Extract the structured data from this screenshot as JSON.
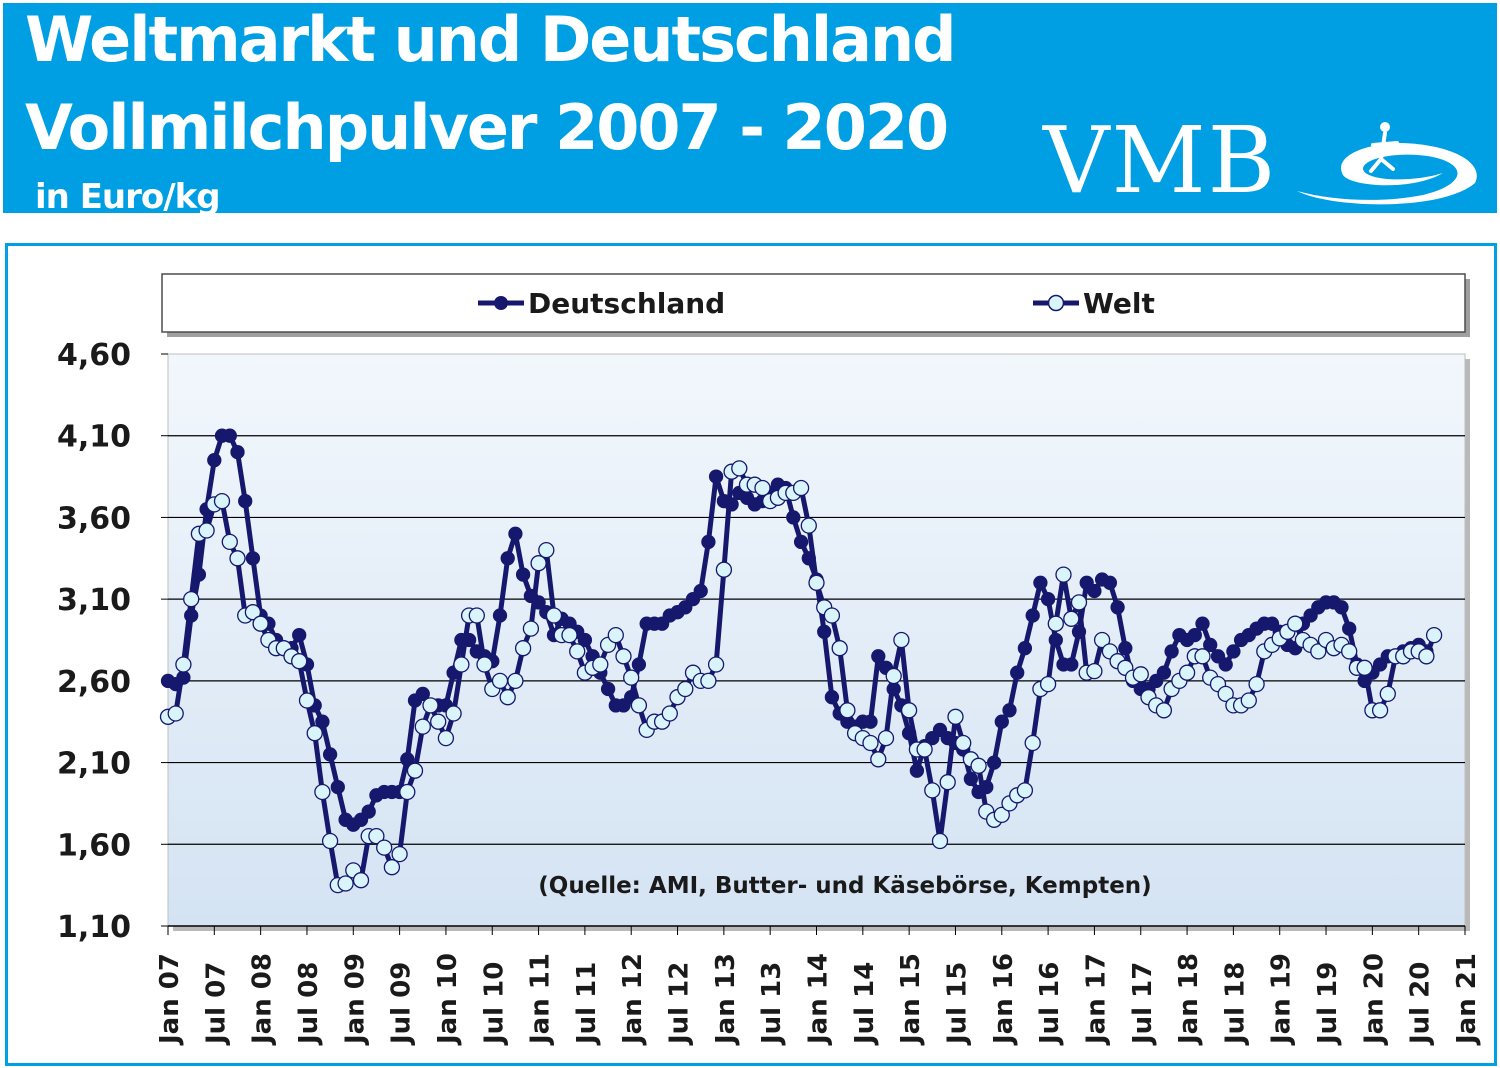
{
  "header": {
    "title_line1": "Weltmarkt und Deutschland",
    "title_line2": "Vollmilchpulver 2007 - 2020",
    "unit": "in Euro/kg",
    "logo_text": "VMB",
    "logo_icon": "vmb-swirl-logo"
  },
  "colors": {
    "header_bg": "#009fe3",
    "plot_bg": "#deeaf6",
    "deutschland": "#16186e",
    "welt_line": "#16186e",
    "welt_marker": "#d9f5fb"
  },
  "chart_data": {
    "type": "line",
    "title": "Weltmarkt und Deutschland Vollmilchpulver 2007 - 2020",
    "ylabel": "in Euro/kg",
    "xlabel": "",
    "ylim": [
      1.1,
      4.6
    ],
    "yticks": [
      "4,60",
      "4,10",
      "3,60",
      "3,10",
      "2,60",
      "2,10",
      "1,60",
      "1,10"
    ],
    "xticks": [
      "Jan 07",
      "Jul 07",
      "Jan 08",
      "Jul 08",
      "Jan 09",
      "Jul 09",
      "Jan 10",
      "Jul 10",
      "Jan 11",
      "Jul 11",
      "Jan 12",
      "Jul 12",
      "Jan 13",
      "Jul 13",
      "Jan 14",
      "Jul 14",
      "Jan 15",
      "Jul 15",
      "Jan 16",
      "Jul 16",
      "Jan 17",
      "Jul 17",
      "Jan 18",
      "Jul 18",
      "Jan 19",
      "Jul 19",
      "Jan 20",
      "Jul 20",
      "Jan 21"
    ],
    "x_start": "Jan 07",
    "x_step": "1 Monat",
    "legend_position": "top",
    "grid": true,
    "annotation": "(Quelle: AMI, Butter- und Käsebörse, Kempten)",
    "series": [
      {
        "name": "Deutschland",
        "marker": "filled",
        "values": [
          2.6,
          2.58,
          2.62,
          3.0,
          3.25,
          3.65,
          3.95,
          4.1,
          4.1,
          4.0,
          3.7,
          3.35,
          3.0,
          2.95,
          2.85,
          2.8,
          2.8,
          2.88,
          2.7,
          2.45,
          2.35,
          2.15,
          1.95,
          1.75,
          1.72,
          1.75,
          1.8,
          1.9,
          1.92,
          1.92,
          1.92,
          2.12,
          2.48,
          2.52,
          2.45,
          2.45,
          2.45,
          2.65,
          2.85,
          2.85,
          2.78,
          2.75,
          2.72,
          3.0,
          3.35,
          3.5,
          3.25,
          3.12,
          3.08,
          3.02,
          2.88,
          2.98,
          2.95,
          2.9,
          2.85,
          2.75,
          2.65,
          2.55,
          2.45,
          2.45,
          2.5,
          2.7,
          2.95,
          2.95,
          2.95,
          3.0,
          3.02,
          3.05,
          3.1,
          3.15,
          3.45,
          3.85,
          3.7,
          3.68,
          3.75,
          3.72,
          3.68,
          3.7,
          3.75,
          3.8,
          3.78,
          3.6,
          3.45,
          3.35,
          3.22,
          2.9,
          2.5,
          2.4,
          2.35,
          2.32,
          2.35,
          2.35,
          2.75,
          2.68,
          2.55,
          2.45,
          2.28,
          2.05,
          2.2,
          2.25,
          2.3,
          2.25,
          2.22,
          2.18,
          2.0,
          1.92,
          1.95,
          2.1,
          2.35,
          2.42,
          2.65,
          2.8,
          3.0,
          3.2,
          3.1,
          2.85,
          2.7,
          2.7,
          2.9,
          3.2,
          3.15,
          3.22,
          3.2,
          3.05,
          2.8,
          2.6,
          2.55,
          2.55,
          2.6,
          2.65,
          2.78,
          2.88,
          2.85,
          2.88,
          2.95,
          2.82,
          2.75,
          2.7,
          2.78,
          2.85,
          2.88,
          2.92,
          2.95,
          2.95,
          2.9,
          2.82,
          2.8,
          2.95,
          3.0,
          3.05,
          3.08,
          3.08,
          3.05,
          2.92,
          2.7,
          2.6,
          2.65,
          2.7,
          2.75,
          2.75,
          2.78,
          2.8,
          2.82,
          2.78
        ]
      },
      {
        "name": "Welt",
        "marker": "open",
        "values": [
          2.38,
          2.4,
          2.7,
          3.1,
          3.5,
          3.52,
          3.68,
          3.7,
          3.45,
          3.35,
          3.0,
          3.02,
          2.95,
          2.85,
          2.8,
          2.8,
          2.75,
          2.72,
          2.48,
          2.28,
          1.92,
          1.62,
          1.35,
          1.36,
          1.44,
          1.38,
          1.65,
          1.65,
          1.58,
          1.46,
          1.54,
          1.92,
          2.05,
          2.32,
          2.45,
          2.35,
          2.25,
          2.4,
          2.7,
          3.0,
          3.0,
          2.7,
          2.55,
          2.6,
          2.5,
          2.6,
          2.8,
          2.92,
          3.32,
          3.4,
          3.0,
          2.88,
          2.88,
          2.78,
          2.65,
          2.68,
          2.7,
          2.82,
          2.88,
          2.75,
          2.62,
          2.45,
          2.3,
          2.35,
          2.35,
          2.4,
          2.5,
          2.55,
          2.65,
          2.6,
          2.6,
          2.7,
          3.28,
          3.88,
          3.9,
          3.8,
          3.8,
          3.78,
          3.7,
          3.72,
          3.75,
          3.75,
          3.78,
          3.55,
          3.2,
          3.05,
          3.0,
          2.8,
          2.42,
          2.28,
          2.25,
          2.22,
          2.12,
          2.25,
          2.63,
          2.85,
          2.42,
          2.18,
          2.18,
          1.93,
          1.62,
          1.98,
          2.38,
          2.22,
          2.12,
          2.08,
          1.8,
          1.75,
          1.78,
          1.85,
          1.9,
          1.93,
          2.22,
          2.55,
          2.58,
          2.95,
          3.25,
          2.98,
          3.08,
          2.65,
          2.66,
          2.85,
          2.78,
          2.72,
          2.68,
          2.62,
          2.64,
          2.5,
          2.45,
          2.42,
          2.55,
          2.6,
          2.65,
          2.75,
          2.75,
          2.62,
          2.58,
          2.52,
          2.45,
          2.45,
          2.48,
          2.58,
          2.78,
          2.82,
          2.86,
          2.9,
          2.95,
          2.85,
          2.82,
          2.78,
          2.85,
          2.8,
          2.82,
          2.78,
          2.68,
          2.68,
          2.42,
          2.42,
          2.52,
          2.75,
          2.75,
          2.78,
          2.78,
          2.75,
          2.88
        ]
      }
    ]
  }
}
